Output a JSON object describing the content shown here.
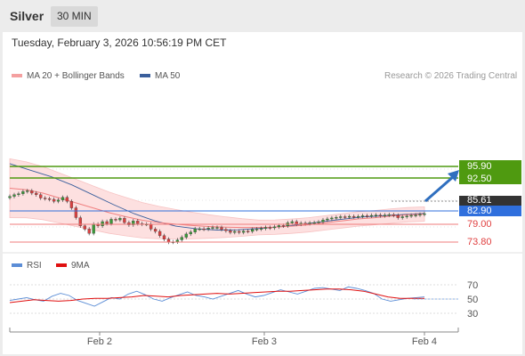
{
  "header": {
    "title": "Silver",
    "timeframe": "30 MIN"
  },
  "datetime": "Tuesday, February 3, 2026 10:56:19 PM CET",
  "legend": {
    "ma20": "MA 20 + Bollinger Bands",
    "ma50": "MA 50",
    "rsi": "RSI",
    "ma9": "9MA",
    "credit": "Research © 2026 Trading Central"
  },
  "colors": {
    "ma20": "#f08080",
    "ma50": "#3a5f9c",
    "rsi": "#5b8dd6",
    "ma9": "#e01010",
    "resistance": "#4f9a10",
    "support": "#ef7b7b",
    "pivot": "#2f6fdd",
    "price": "#333333"
  },
  "levels": [
    {
      "value": "95.90",
      "kind": "resistance"
    },
    {
      "value": "92.50",
      "kind": "resistance"
    },
    {
      "value": "85.61",
      "kind": "price"
    },
    {
      "value": "82.90",
      "kind": "pivot"
    },
    {
      "value": "79.00",
      "kind": "support"
    },
    {
      "value": "73.80",
      "kind": "support"
    }
  ],
  "rsi_axis": [
    "70",
    "50",
    "30"
  ],
  "x_axis": [
    "Feb 2",
    "Feb 3",
    "Feb 4"
  ],
  "chart_data": {
    "type": "line",
    "price_range": [
      71,
      105
    ],
    "rsi_range": [
      0,
      100
    ],
    "closes": [
      88.5,
      89.0,
      89.3,
      90.0,
      90.2,
      89.5,
      89.0,
      88.0,
      87.8,
      87.6,
      87.0,
      87.4,
      88.2,
      87.0,
      85.0,
      82.0,
      79.5,
      78.5,
      77.2,
      80.0,
      79.5,
      80.8,
      80.2,
      81.5,
      81.3,
      81.8,
      80.5,
      79.8,
      81.0,
      80.2,
      80.0,
      80.0,
      78.5,
      77.8,
      76.5,
      75.4,
      74.5,
      74.6,
      75.2,
      76.0,
      77.0,
      77.6,
      78.6,
      78.6,
      78.5,
      78.8,
      79.0,
      79.0,
      78.4,
      78.0,
      77.5,
      77.8,
      77.5,
      77.9,
      77.8,
      78.4,
      78.5,
      78.7,
      79.0,
      78.9,
      79.2,
      79.6,
      79.5,
      80.4,
      80.8,
      80.0,
      80.3,
      80.2,
      80.4,
      80.5,
      80.7,
      81.3,
      81.6,
      81.9,
      82.1,
      82.3,
      82.2,
      82.4,
      82.3,
      82.4,
      82.6,
      82.5,
      82.7,
      82.8,
      82.6,
      82.8,
      82.9,
      82.7,
      82.0,
      82.3,
      82.5,
      82.7,
      82.8,
      83.0,
      83.2
    ],
    "ma20_values": [
      91.0,
      90.5,
      89.5,
      88.0,
      86.5,
      85.0,
      83.5,
      82.3,
      81.2,
      80.5,
      80.0,
      79.6,
      79.3,
      79.1,
      79.0,
      79.0,
      79.1,
      79.4,
      79.8,
      80.4,
      81.0,
      81.6,
      82.0,
      82.5,
      82.9,
      83.1
    ],
    "ma50_values": [
      98.5,
      96.5,
      94.5,
      92.0,
      89.0,
      86.0,
      83.2,
      81.0,
      79.4,
      78.6,
      78.2,
      78.3,
      78.7,
      79.2,
      79.9,
      80.7,
      81.5,
      82.2,
      82.6,
      83.0,
      83.3
    ],
    "rsi_values": [
      48,
      50,
      52,
      49,
      47,
      54,
      58,
      55,
      48,
      44,
      40,
      46,
      52,
      50,
      57,
      61,
      56,
      50,
      47,
      52,
      56,
      60,
      55,
      53,
      50,
      54,
      58,
      62,
      57,
      53,
      55,
      59,
      63,
      60,
      57,
      61,
      65,
      66,
      64,
      62,
      67,
      65,
      62,
      58,
      50,
      47,
      49,
      51,
      52,
      53
    ],
    "ma9_values": [
      45,
      47,
      49,
      48,
      47,
      48,
      50,
      51,
      51,
      52,
      53,
      55,
      54,
      53,
      55,
      56,
      57,
      58,
      57,
      58,
      59,
      60,
      61,
      61,
      62,
      63,
      64,
      64,
      63,
      61,
      57,
      53,
      51,
      51,
      51
    ]
  }
}
